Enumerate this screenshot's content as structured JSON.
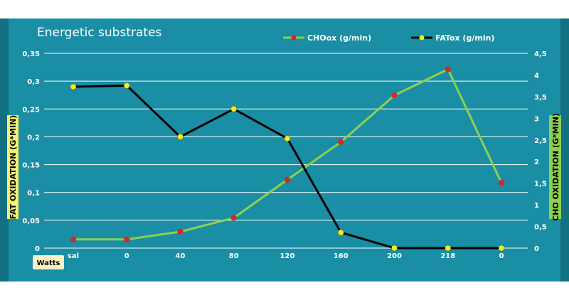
{
  "chart_data": {
    "type": "line",
    "title": "Energetic substrates",
    "categories": [
      "sal",
      "0",
      "40",
      "80",
      "120",
      "160",
      "200",
      "218",
      "0"
    ],
    "xlabel": "Watts",
    "ylabel_left": "FAT OXIDATION (G*MIN)",
    "ylabel_right": "CHO OXIDATION (G*MIN)",
    "y_left": {
      "min": 0,
      "max": 0.35,
      "ticks": [
        "0",
        "0,05",
        "0,1",
        "0,15",
        "0,2",
        "0,25",
        "0,3",
        "0,35"
      ]
    },
    "y_right": {
      "min": 0,
      "max": 4.5,
      "ticks": [
        "0",
        "0,5",
        "1",
        "1,5",
        "2",
        "2,5",
        "3",
        "3,5",
        "4",
        "4,5"
      ]
    },
    "grid": true,
    "legend_position": "top-right",
    "series": [
      {
        "name": "CHOox (g/min)",
        "axis": "right",
        "line_color": "#8ed050",
        "marker_color": "#e0202a",
        "values": [
          0.2,
          0.2,
          0.38,
          0.7,
          1.58,
          2.45,
          3.53,
          4.13,
          1.51
        ]
      },
      {
        "name": "FATox (g/min)",
        "axis": "left",
        "line_color": "#000000",
        "marker_color": "#f2ee1a",
        "values": [
          0.29,
          0.292,
          0.2,
          0.25,
          0.197,
          0.028,
          0,
          0,
          0
        ]
      }
    ]
  }
}
